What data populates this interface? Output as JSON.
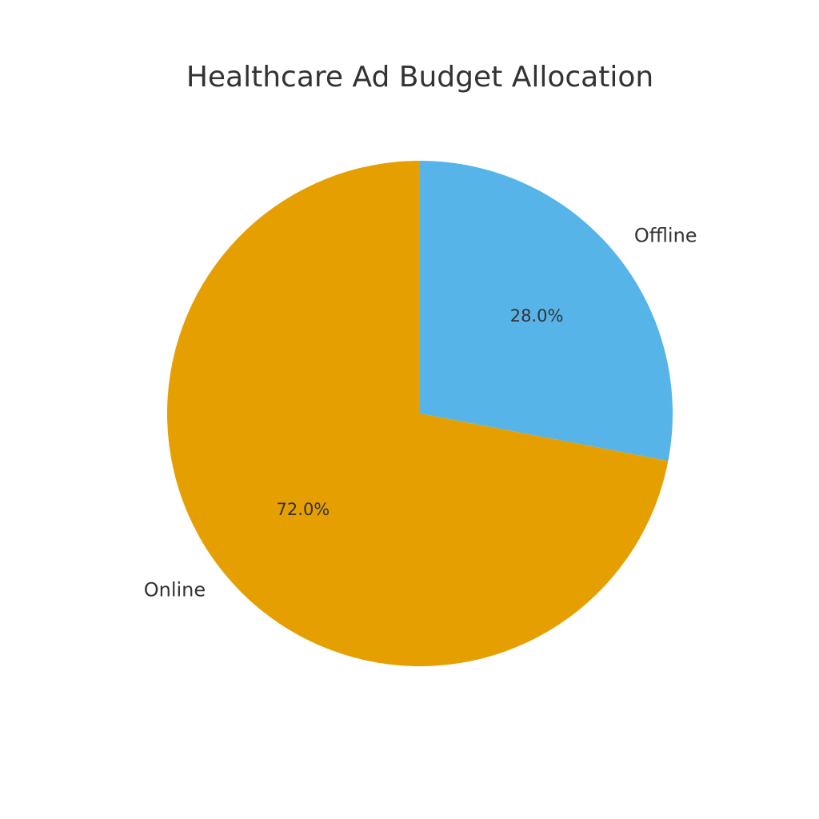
{
  "chart_data": {
    "type": "pie",
    "title": "Healthcare Ad Budget Allocation",
    "slices": [
      {
        "label": "Offline",
        "value": 28.0,
        "pct_label": "28.0%",
        "color": "#56B4E9"
      },
      {
        "label": "Online",
        "value": 72.0,
        "pct_label": "72.0%",
        "color": "#E69F00"
      }
    ],
    "start_angle": "12 o'clock",
    "direction": "clockwise",
    "legend": "none"
  }
}
